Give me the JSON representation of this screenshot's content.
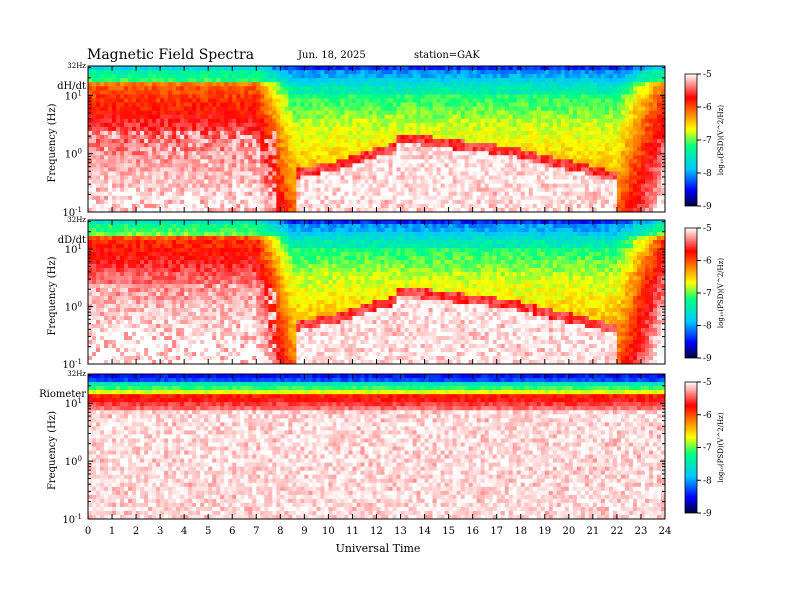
{
  "header": {
    "title": "Magnetic  Field  Spectra",
    "date": "Jun. 18, 2025",
    "station": "station=GAK"
  },
  "chart_data": {
    "type": "heatmap",
    "xlabel": "Universal Time",
    "xlim": [
      0,
      24
    ],
    "x_ticks": [
      "0",
      "1",
      "2",
      "3",
      "4",
      "5",
      "6",
      "7",
      "8",
      "9",
      "10",
      "11",
      "12",
      "13",
      "14",
      "15",
      "16",
      "17",
      "18",
      "19",
      "20",
      "21",
      "22",
      "23",
      "24"
    ],
    "panels": [
      {
        "name": "dH/dt",
        "ylabel": "Frequency  (Hz)",
        "top_label": "32Hz",
        "ylim": [
          0.1,
          32
        ],
        "y_scale": "log",
        "y_ticks": [
          {
            "base": "10",
            "exp": "1",
            "v": 10
          },
          {
            "base": "10",
            "exp": "0",
            "v": 1
          },
          {
            "base": "10",
            "exp": "-1",
            "v": 0.1
          }
        ],
        "profile": "dH"
      },
      {
        "name": "dD/dt",
        "ylabel": "Frequency  (Hz)",
        "top_label": "32Hz",
        "ylim": [
          0.1,
          32
        ],
        "y_scale": "log",
        "y_ticks": [
          {
            "base": "10",
            "exp": "1",
            "v": 10
          },
          {
            "base": "10",
            "exp": "0",
            "v": 1
          },
          {
            "base": "10",
            "exp": "-1",
            "v": 0.1
          }
        ],
        "profile": "dD"
      },
      {
        "name": "Riometer",
        "ylabel": "Frequency  (Hz)",
        "top_label": "32Hz",
        "ylim": [
          0.1,
          32
        ],
        "y_scale": "log",
        "y_ticks": [
          {
            "base": "10",
            "exp": "1",
            "v": 10
          },
          {
            "base": "10",
            "exp": "0",
            "v": 1
          },
          {
            "base": "10",
            "exp": "-1",
            "v": 0.1
          }
        ],
        "profile": "rio"
      }
    ],
    "colorbar": {
      "label": "log₁₀(PSD)(V^2/Hz)",
      "range": [
        -9,
        -5
      ],
      "ticks": [
        "-5",
        "-6",
        "-7",
        "-8",
        "-9"
      ],
      "colors": [
        "#000040",
        "#0000ff",
        "#00c8ff",
        "#00ff80",
        "#ffff00",
        "#ff8000",
        "#ff0000",
        "#ffffff"
      ]
    }
  }
}
